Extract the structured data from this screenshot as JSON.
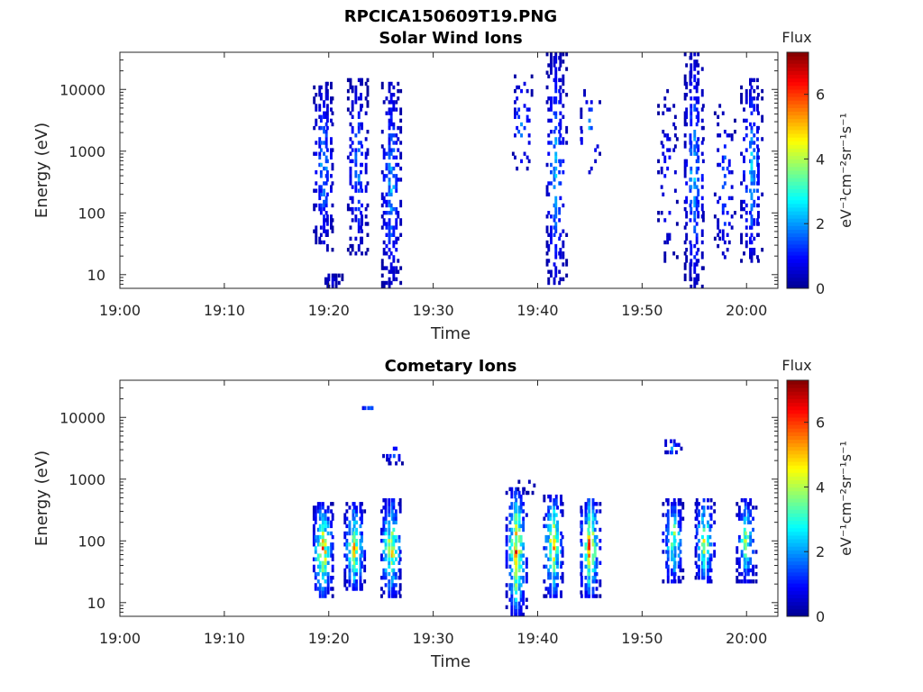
{
  "figure_title": "RPCICA150609T19.PNG",
  "colormap": [
    "#00008f",
    "#0000ff",
    "#0080ff",
    "#00ffff",
    "#80ff80",
    "#ffff00",
    "#ff8000",
    "#ff0000",
    "#800000"
  ],
  "chart_data": [
    {
      "type": "heatmap",
      "title": "Solar Wind Ions",
      "xlabel": "Time",
      "ylabel": "Energy (eV)",
      "yscale": "log",
      "xlim": [
        "19:00",
        "20:03"
      ],
      "ylim": [
        6,
        40000
      ],
      "x_ticks": [
        "19:00",
        "19:10",
        "19:20",
        "19:30",
        "19:40",
        "19:50",
        "20:00"
      ],
      "y_ticks": [
        {
          "value": 10,
          "label": "10"
        },
        {
          "value": 100,
          "label": "100"
        },
        {
          "value": 1000,
          "label": "1000"
        },
        {
          "value": 10000,
          "label": "10000"
        }
      ],
      "colorbar": {
        "title": "Flux",
        "label": "eV⁻¹cm⁻²sr⁻¹s⁻¹",
        "range": [
          0,
          7.3
        ],
        "ticks": [
          "0",
          "2",
          "4",
          "6"
        ]
      },
      "bursts": [
        {
          "time": "19:19.5",
          "emin": 25,
          "emax": 14000,
          "flux_peak": 2.5,
          "density": 0.55
        },
        {
          "time": "19:20.3",
          "emin": 6,
          "emax": 11,
          "flux_peak": 0.8,
          "density": 0.9
        },
        {
          "time": "19:22.8",
          "emin": 20,
          "emax": 16000,
          "flux_peak": 2.2,
          "density": 0.45
        },
        {
          "time": "19:26.0",
          "emin": 6,
          "emax": 13000,
          "flux_peak": 2.6,
          "density": 0.5
        },
        {
          "time": "19:38.5",
          "emin": 400,
          "emax": 17000,
          "flux_peak": 2.3,
          "density": 0.2
        },
        {
          "time": "19:41.8",
          "emin": 6,
          "emax": 38000,
          "flux_peak": 2.6,
          "density": 0.5
        },
        {
          "time": "19:45.0",
          "emin": 450,
          "emax": 12000,
          "flux_peak": 2.4,
          "density": 0.15
        },
        {
          "time": "19:52.5",
          "emin": 15,
          "emax": 10000,
          "flux_peak": 1.4,
          "density": 0.2
        },
        {
          "time": "19:55.0",
          "emin": 6,
          "emax": 38000,
          "flux_peak": 2.6,
          "density": 0.5
        },
        {
          "time": "19:58.0",
          "emin": 15,
          "emax": 6000,
          "flux_peak": 2.0,
          "density": 0.2
        },
        {
          "time": "20:00.5",
          "emin": 15,
          "emax": 16000,
          "flux_peak": 2.7,
          "density": 0.45
        }
      ]
    },
    {
      "type": "heatmap",
      "title": "Cometary Ions",
      "xlabel": "Time",
      "ylabel": "Energy (eV)",
      "yscale": "log",
      "xlim": [
        "19:00",
        "20:03"
      ],
      "ylim": [
        6,
        40000
      ],
      "x_ticks": [
        "19:00",
        "19:10",
        "19:20",
        "19:30",
        "19:40",
        "19:50",
        "20:00"
      ],
      "y_ticks": [
        {
          "value": 10,
          "label": "10"
        },
        {
          "value": 100,
          "label": "100"
        },
        {
          "value": 1000,
          "label": "1000"
        },
        {
          "value": 10000,
          "label": "10000"
        }
      ],
      "colorbar": {
        "title": "Flux",
        "label": "eV⁻¹cm⁻²sr⁻¹s⁻¹",
        "range": [
          0,
          7.3
        ],
        "ticks": [
          "0",
          "2",
          "4",
          "6"
        ]
      },
      "bursts": [
        {
          "time": "19:19.5",
          "emin": 12,
          "emax": 400,
          "flux_peak": 6.0,
          "density": 0.85
        },
        {
          "time": "19:22.5",
          "emin": 15,
          "emax": 400,
          "flux_peak": 5.3,
          "density": 0.8
        },
        {
          "time": "19:26.0",
          "emin": 12,
          "emax": 500,
          "flux_peak": 5.5,
          "density": 0.8
        },
        {
          "time": "19:24.0",
          "emin": 13000,
          "emax": 16000,
          "flux_peak": 2.5,
          "density": 0.6
        },
        {
          "time": "19:26.2",
          "emin": 1800,
          "emax": 3500,
          "flux_peak": 2.5,
          "density": 0.5
        },
        {
          "time": "19:38.0",
          "emin": 6,
          "emax": 700,
          "flux_peak": 6.3,
          "density": 0.85
        },
        {
          "time": "19:41.5",
          "emin": 12,
          "emax": 600,
          "flux_peak": 5.5,
          "density": 0.8
        },
        {
          "time": "19:45.0",
          "emin": 12,
          "emax": 500,
          "flux_peak": 6.2,
          "density": 0.85
        },
        {
          "time": "19:39.0",
          "emin": 600,
          "emax": 1000,
          "flux_peak": 0.8,
          "density": 0.3
        },
        {
          "time": "19:53.0",
          "emin": 20,
          "emax": 500,
          "flux_peak": 4.5,
          "density": 0.7
        },
        {
          "time": "19:52.9",
          "emin": 2500,
          "emax": 4500,
          "flux_peak": 2.3,
          "density": 0.6
        },
        {
          "time": "19:56.0",
          "emin": 20,
          "emax": 500,
          "flux_peak": 4.8,
          "density": 0.7
        },
        {
          "time": "20:00.0",
          "emin": 20,
          "emax": 500,
          "flux_peak": 4.5,
          "density": 0.7
        }
      ]
    }
  ]
}
